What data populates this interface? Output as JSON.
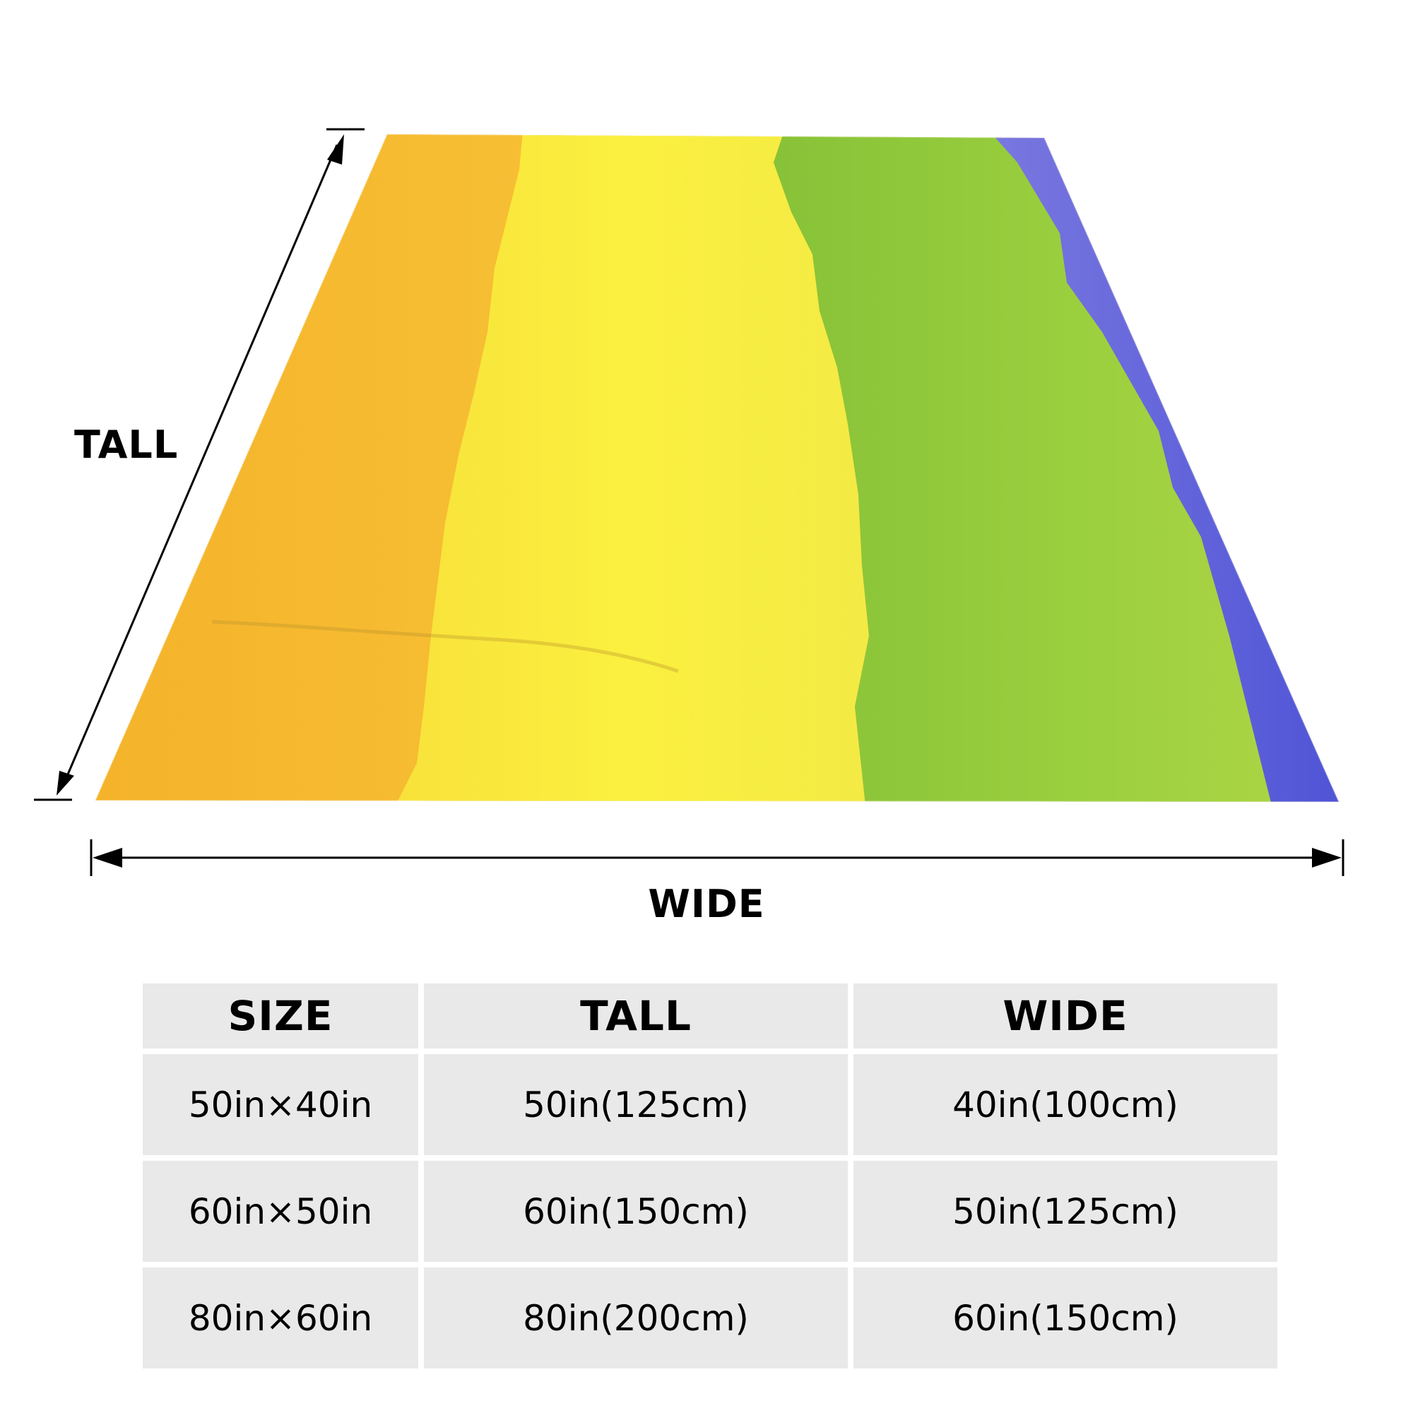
{
  "diagram": {
    "height_label": "TALL",
    "width_label": "WIDE",
    "blanket_colors": [
      "#f5b02e",
      "#f8ee3a",
      "#8cc83a",
      "#5a5ddc"
    ]
  },
  "size_table": {
    "headers": [
      "SIZE",
      "TALL",
      "WIDE"
    ],
    "rows": [
      [
        "50in×40in",
        "50in(125cm)",
        "40in(100cm)"
      ],
      [
        "60in×50in",
        "60in(150cm)",
        "50in(125cm)"
      ],
      [
        "80in×60in",
        "80in(200cm)",
        "60in(150cm)"
      ]
    ]
  }
}
